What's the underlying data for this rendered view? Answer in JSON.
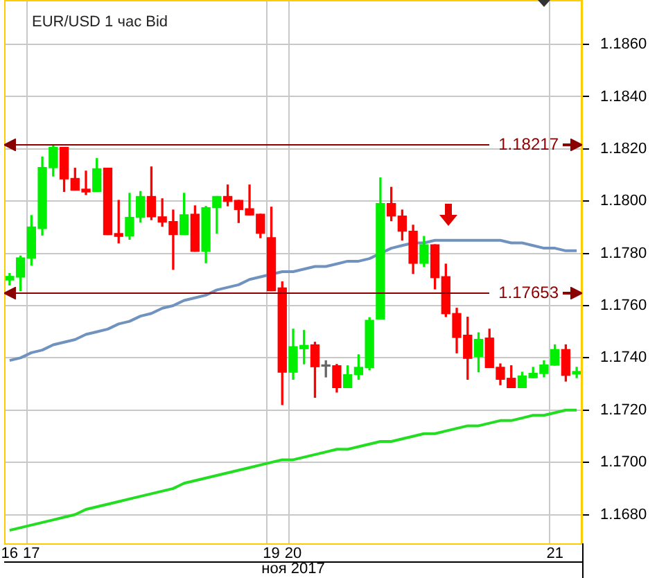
{
  "chart_data": {
    "type": "candlestick",
    "title": "EUR/USD 1 час Bid",
    "xlabel": "ноя 2017",
    "categories": [
      "16",
      null,
      "17",
      null,
      null,
      null,
      null,
      null,
      null,
      null,
      null,
      null,
      null,
      null,
      null,
      null,
      null,
      null,
      null,
      null,
      null,
      null,
      null,
      null,
      "19",
      null,
      "20",
      null,
      null,
      null,
      null,
      null,
      null,
      null,
      null,
      null,
      null,
      null,
      null,
      null,
      null,
      null,
      null,
      null,
      null,
      null,
      null,
      null,
      null,
      null,
      "21",
      null,
      null
    ],
    "ohlc": [
      [
        1.17698,
        1.17723,
        1.17679,
        1.17712
      ],
      [
        1.17709,
        1.1779,
        1.17657,
        1.17783
      ],
      [
        1.17782,
        1.17945,
        1.17755,
        1.17901
      ],
      [
        1.17895,
        1.18169,
        1.1787,
        1.18129
      ],
      [
        1.18128,
        1.18216,
        1.18096,
        1.18206
      ],
      [
        1.18206,
        1.18206,
        1.18037,
        1.18085
      ],
      [
        1.18087,
        1.18126,
        1.18042,
        1.18042
      ],
      [
        1.18046,
        1.18115,
        1.18025,
        1.18035
      ],
      [
        1.18037,
        1.18163,
        1.18037,
        1.18124
      ],
      [
        1.18126,
        1.18126,
        1.17872,
        1.17872
      ],
      [
        1.17876,
        1.18003,
        1.1784,
        1.17865
      ],
      [
        1.17867,
        1.1803,
        1.17854,
        1.17938
      ],
      [
        1.17938,
        1.18037,
        1.1792,
        1.18018
      ],
      [
        1.18018,
        1.18131,
        1.17929,
        1.1794
      ],
      [
        1.1794,
        1.18009,
        1.17904,
        1.1792
      ],
      [
        1.17922,
        1.17966,
        1.17739,
        1.17872
      ],
      [
        1.17872,
        1.1803,
        1.17872,
        1.17948
      ],
      [
        1.1795,
        1.17982,
        1.17808,
        1.17808
      ],
      [
        1.17808,
        1.1798,
        1.17764,
        1.17975
      ],
      [
        1.17975,
        1.18018,
        1.17877,
        1.18018
      ],
      [
        1.18018,
        1.18062,
        1.17982,
        1.17999
      ],
      [
        1.18003,
        1.18003,
        1.17918,
        1.17968
      ],
      [
        1.17971,
        1.18062,
        1.17947,
        1.17947
      ],
      [
        1.1795,
        1.1795,
        1.1786,
        1.17877
      ],
      [
        1.1786,
        1.17977,
        1.17657,
        1.17657
      ],
      [
        1.17668,
        1.17691,
        1.17221,
        1.17345
      ],
      [
        1.17345,
        1.1751,
        1.17318,
        1.17443
      ],
      [
        1.17435,
        1.17505,
        1.17377,
        1.17448
      ],
      [
        1.1745,
        1.1746,
        1.17249,
        1.17366
      ],
      [
        1.17368,
        1.17389,
        1.17327,
        1.17368
      ],
      [
        1.1737,
        1.17375,
        1.17269,
        1.17286
      ],
      [
        1.17286,
        1.1737,
        1.17286,
        1.17336
      ],
      [
        1.17336,
        1.17412,
        1.17318,
        1.17364
      ],
      [
        1.17363,
        1.17554,
        1.17354,
        1.17544
      ],
      [
        1.17549,
        1.18089,
        1.17549,
        1.17991
      ],
      [
        1.17991,
        1.18053,
        1.17925,
        1.17943
      ],
      [
        1.17943,
        1.17966,
        1.17851,
        1.17885
      ],
      [
        1.17885,
        1.17908,
        1.17723,
        1.17762
      ],
      [
        1.17762,
        1.17865,
        1.1775,
        1.17833
      ],
      [
        1.17833,
        1.17833,
        1.17664,
        1.17707
      ],
      [
        1.17711,
        1.17759,
        1.17558,
        1.17569
      ],
      [
        1.1757,
        1.1759,
        1.17419,
        1.17478
      ],
      [
        1.17487,
        1.17556,
        1.17318,
        1.17398
      ],
      [
        1.17405,
        1.17496,
        1.17347,
        1.17471
      ],
      [
        1.17476,
        1.1751,
        1.17363,
        1.17363
      ],
      [
        1.17364,
        1.17377,
        1.17297,
        1.17318
      ],
      [
        1.17322,
        1.1737,
        1.17286,
        1.17286
      ],
      [
        1.17286,
        1.17345,
        1.17286,
        1.17331
      ],
      [
        1.17324,
        1.17364,
        1.17324,
        1.17341
      ],
      [
        1.1734,
        1.17389,
        1.17327,
        1.17373
      ],
      [
        1.17372,
        1.1745,
        1.17372,
        1.17432
      ],
      [
        1.17432,
        1.1745,
        1.17311,
        1.17333
      ],
      [
        1.17338,
        1.17364,
        1.17324,
        1.17348
      ]
    ],
    "colors": [
      "#00ee00",
      "#00ee00",
      "#00ee00",
      "#00ee00",
      "#00ee00",
      "#ff0000",
      "#ff0000",
      "#ff0000",
      "#00ee00",
      "#ff0000",
      "#ff0000",
      "#00ee00",
      "#00ee00",
      "#ff0000",
      "#ff0000",
      "#ff0000",
      "#00ee00",
      "#ff0000",
      "#00ee00",
      "#00ee00",
      "#ff0000",
      "#ff0000",
      "#ff0000",
      "#ff0000",
      "#ff0000",
      "#ff0000",
      "#00ee00",
      "#00ee00",
      "#ff0000",
      "#666666",
      "#ff0000",
      "#00ee00",
      "#00ee00",
      "#00ee00",
      "#00ee00",
      "#ff0000",
      "#ff0000",
      "#ff0000",
      "#00ee00",
      "#ff0000",
      "#ff0000",
      "#ff0000",
      "#ff0000",
      "#00ee00",
      "#ff0000",
      "#ff0000",
      "#ff0000",
      "#00ee00",
      "#00ee00",
      "#00ee00",
      "#00ee00",
      "#ff0000",
      "#00ee00"
    ],
    "series": [
      {
        "type": "line",
        "color": "#7092be",
        "values": [
          1.1739,
          1.174,
          1.1742,
          1.1743,
          1.1745,
          1.1746,
          1.1747,
          1.1749,
          1.175,
          1.1751,
          1.1753,
          1.1754,
          1.1756,
          1.1757,
          1.1759,
          1.176,
          1.1762,
          1.1763,
          1.1764,
          1.1766,
          1.1767,
          1.1768,
          1.177,
          1.1771,
          1.1772,
          1.1773,
          1.1773,
          1.1774,
          1.1775,
          1.1775,
          1.1776,
          1.1777,
          1.1777,
          1.1778,
          1.178,
          1.1782,
          1.1783,
          1.1784,
          1.1784,
          1.1785,
          1.1785,
          1.1785,
          1.1785,
          1.1785,
          1.1785,
          1.1785,
          1.1784,
          1.1784,
          1.1783,
          1.1782,
          1.1782,
          1.1781,
          1.1781
        ]
      },
      {
        "type": "line",
        "color": "#22dd22",
        "values": [
          1.1674,
          1.1675,
          1.1676,
          1.1677,
          1.1678,
          1.1679,
          1.168,
          1.1682,
          1.1683,
          1.1684,
          1.1685,
          1.1686,
          1.1687,
          1.1688,
          1.1689,
          1.169,
          1.1692,
          1.1693,
          1.1694,
          1.1695,
          1.1696,
          1.1697,
          1.1698,
          1.1699,
          1.17,
          1.1701,
          1.1701,
          1.1702,
          1.1703,
          1.1704,
          1.1705,
          1.1705,
          1.1706,
          1.1707,
          1.1708,
          1.1708,
          1.1709,
          1.171,
          1.1711,
          1.1711,
          1.1712,
          1.1713,
          1.1714,
          1.1714,
          1.1715,
          1.1716,
          1.1716,
          1.1717,
          1.1718,
          1.1718,
          1.1719,
          1.172,
          1.172
        ]
      }
    ],
    "ylim": [
      1.1669,
      1.1877
    ],
    "yticks": [
      {
        "value": 1.168,
        "label": "1.1680"
      },
      {
        "value": 1.17,
        "label": "1.1700"
      },
      {
        "value": 1.172,
        "label": "1.1720"
      },
      {
        "value": 1.174,
        "label": "1.1740"
      },
      {
        "value": 1.176,
        "label": "1.1760"
      },
      {
        "value": 1.178,
        "label": "1.1780"
      },
      {
        "value": 1.18,
        "label": "1.1800"
      },
      {
        "value": 1.182,
        "label": "1.1820"
      },
      {
        "value": 1.184,
        "label": "1.1840"
      },
      {
        "value": 1.186,
        "label": "1.1860"
      }
    ],
    "ref_lines": [
      {
        "axis": "y",
        "value": 1.18217,
        "label": "1.18217",
        "color": "#8b0000"
      },
      {
        "axis": "y",
        "value": 1.17653,
        "label": "1.17653",
        "color": "#8b0000"
      }
    ],
    "grid": true,
    "marker": "none"
  }
}
